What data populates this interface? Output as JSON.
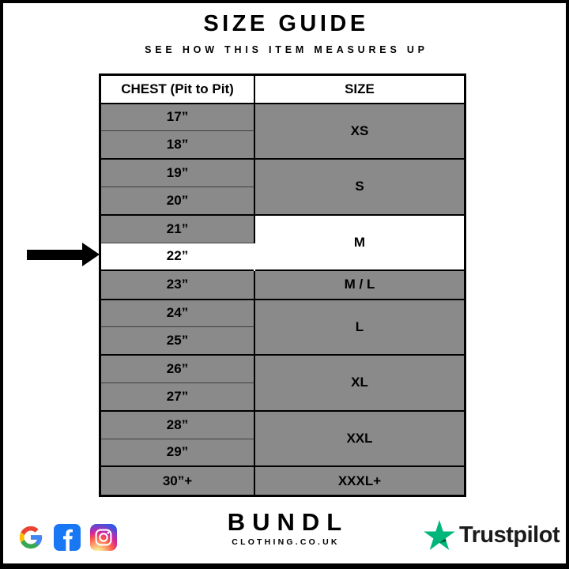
{
  "header": {
    "title": "SIZE GUIDE",
    "subtitle": "SEE HOW THIS ITEM MEASURES UP"
  },
  "table": {
    "columns": [
      "CHEST (Pit to Pit)",
      "SIZE"
    ],
    "groups": [
      {
        "size": "XS",
        "highlight": false,
        "rows": [
          {
            "chest": "17”",
            "highlight": false
          },
          {
            "chest": "18”",
            "highlight": false
          }
        ]
      },
      {
        "size": "S",
        "highlight": false,
        "rows": [
          {
            "chest": "19”",
            "highlight": false
          },
          {
            "chest": "20”",
            "highlight": false
          }
        ]
      },
      {
        "size": "M",
        "highlight": true,
        "rows": [
          {
            "chest": "21”",
            "highlight": false
          },
          {
            "chest": "22”",
            "highlight": true
          }
        ]
      },
      {
        "size": "M / L",
        "highlight": false,
        "rows": [
          {
            "chest": "23”",
            "highlight": false
          }
        ]
      },
      {
        "size": "L",
        "highlight": false,
        "rows": [
          {
            "chest": "24”",
            "highlight": false
          },
          {
            "chest": "25”",
            "highlight": false
          }
        ]
      },
      {
        "size": "XL",
        "highlight": false,
        "rows": [
          {
            "chest": "26”",
            "highlight": false
          },
          {
            "chest": "27”",
            "highlight": false
          }
        ]
      },
      {
        "size": "XXL",
        "highlight": false,
        "rows": [
          {
            "chest": "28”",
            "highlight": false
          },
          {
            "chest": "29”",
            "highlight": false
          }
        ]
      },
      {
        "size": "XXXL+",
        "highlight": false,
        "rows": [
          {
            "chest": "30”+",
            "highlight": false
          }
        ]
      }
    ],
    "highlighted_size": "M",
    "highlighted_chest": "22”"
  },
  "footer": {
    "social_icons": [
      "google-icon",
      "facebook-icon",
      "instagram-icon"
    ],
    "brand": {
      "name": "BUNDL",
      "domain": "CLOTHING.CO.UK"
    },
    "trustpilot": {
      "label": "Trustpilot"
    }
  },
  "colors": {
    "frame": "#000000",
    "cell_gray": "#8a8a8a",
    "highlight": "#ffffff",
    "facebook_blue": "#1877F2",
    "trustpilot_green": "#00B67A",
    "trustpilot_dark_green": "#005128",
    "google_g": [
      "#4285F4",
      "#34A853",
      "#FBBC05",
      "#EA4335"
    ],
    "instagram_gradient": [
      "#fdf497",
      "#fd5949",
      "#d6249f",
      "#285AEB"
    ]
  }
}
